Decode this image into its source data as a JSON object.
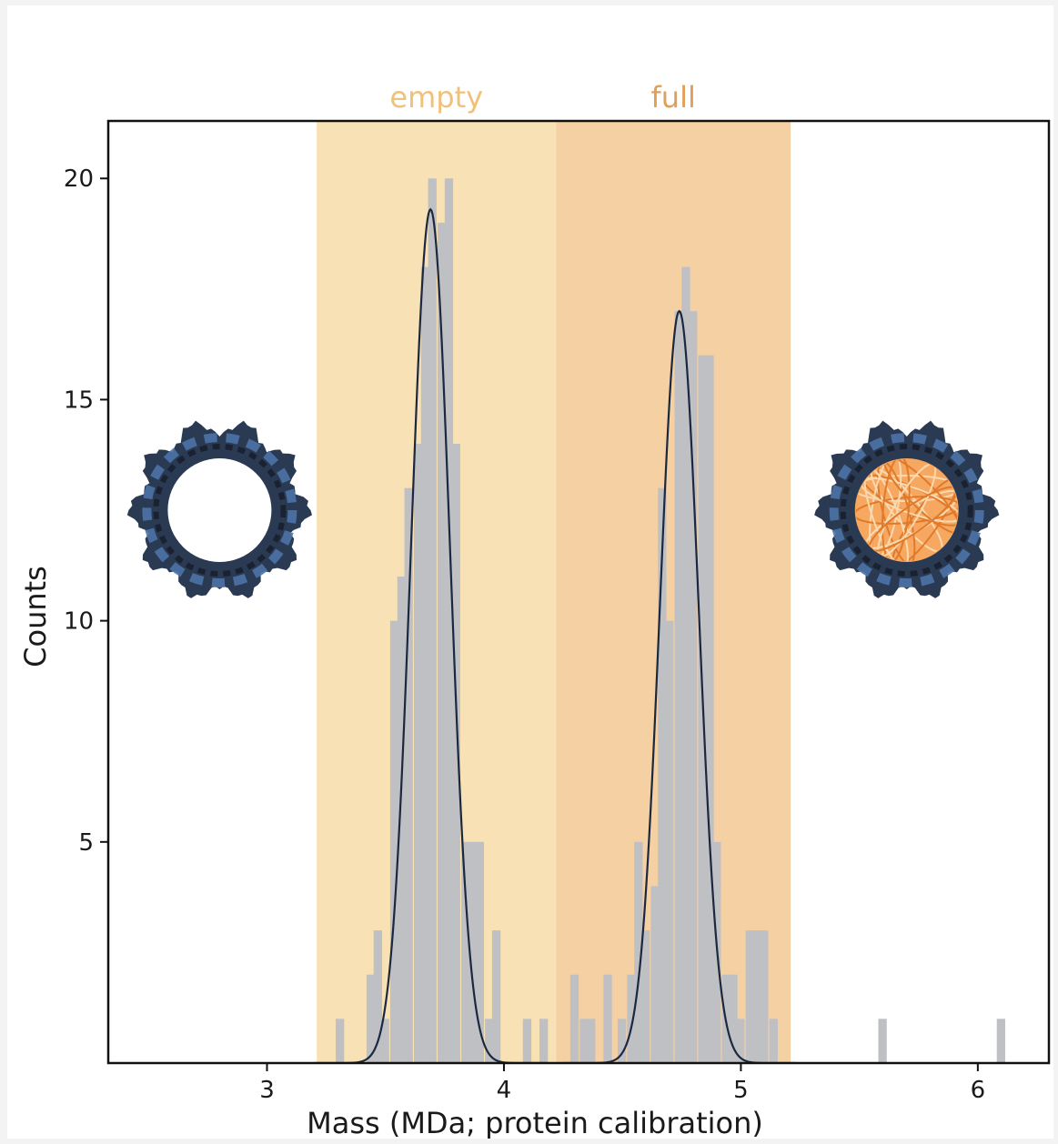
{
  "chart_data": {
    "type": "bar",
    "title": "",
    "xlabel": "Mass (MDa; protein calibration)",
    "ylabel": "Counts",
    "xlim": [
      2.33,
      6.3
    ],
    "ylim": [
      0,
      21.3
    ],
    "xticks": [
      3,
      4,
      5,
      6
    ],
    "yticks": [
      5,
      10,
      15,
      20
    ],
    "bin_width": 0.0333,
    "regions": [
      {
        "label": "empty",
        "x0": 3.21,
        "x1": 4.22,
        "color": "#f8e1b4",
        "label_color": "#efc17a"
      },
      {
        "label": "full",
        "x0": 4.22,
        "x1": 5.21,
        "color": "#f4d0a3",
        "label_color": "#e0a058"
      }
    ],
    "histogram": {
      "color": "#bfc0c4",
      "bin_starts": [
        3.29,
        3.42,
        3.45,
        3.48,
        3.52,
        3.55,
        3.58,
        3.62,
        3.65,
        3.68,
        3.72,
        3.75,
        3.78,
        3.82,
        3.85,
        3.88,
        3.92,
        3.95,
        4.08,
        4.15,
        4.28,
        4.32,
        4.35,
        4.42,
        4.48,
        4.52,
        4.55,
        4.58,
        4.62,
        4.65,
        4.68,
        4.72,
        4.75,
        4.78,
        4.82,
        4.85,
        4.88,
        4.92,
        4.95,
        4.98,
        5.02,
        5.05,
        5.08,
        5.12,
        5.58,
        6.08
      ],
      "counts": [
        1,
        2,
        3,
        1,
        10,
        11,
        13,
        14,
        18,
        20,
        19,
        20,
        14,
        5,
        5,
        5,
        1,
        3,
        1,
        1,
        2,
        1,
        1,
        2,
        1,
        2,
        5,
        3,
        4,
        13,
        10,
        17,
        18,
        17,
        16,
        16,
        5,
        2,
        2,
        1,
        3,
        3,
        3,
        1,
        1,
        1
      ]
    },
    "series": [
      {
        "type": "gaussian",
        "mean": 3.69,
        "sigma": 0.082,
        "amplitude": 19.3,
        "color": "#1b2840"
      },
      {
        "type": "gaussian",
        "mean": 4.74,
        "sigma": 0.082,
        "amplitude": 17.0,
        "color": "#1b2840"
      }
    ],
    "annotations": [
      {
        "name": "empty-capsid-illustration",
        "x": 2.8,
        "y": 12.5
      },
      {
        "name": "full-capsid-illustration",
        "x": 5.7,
        "y": 12.5
      }
    ]
  }
}
